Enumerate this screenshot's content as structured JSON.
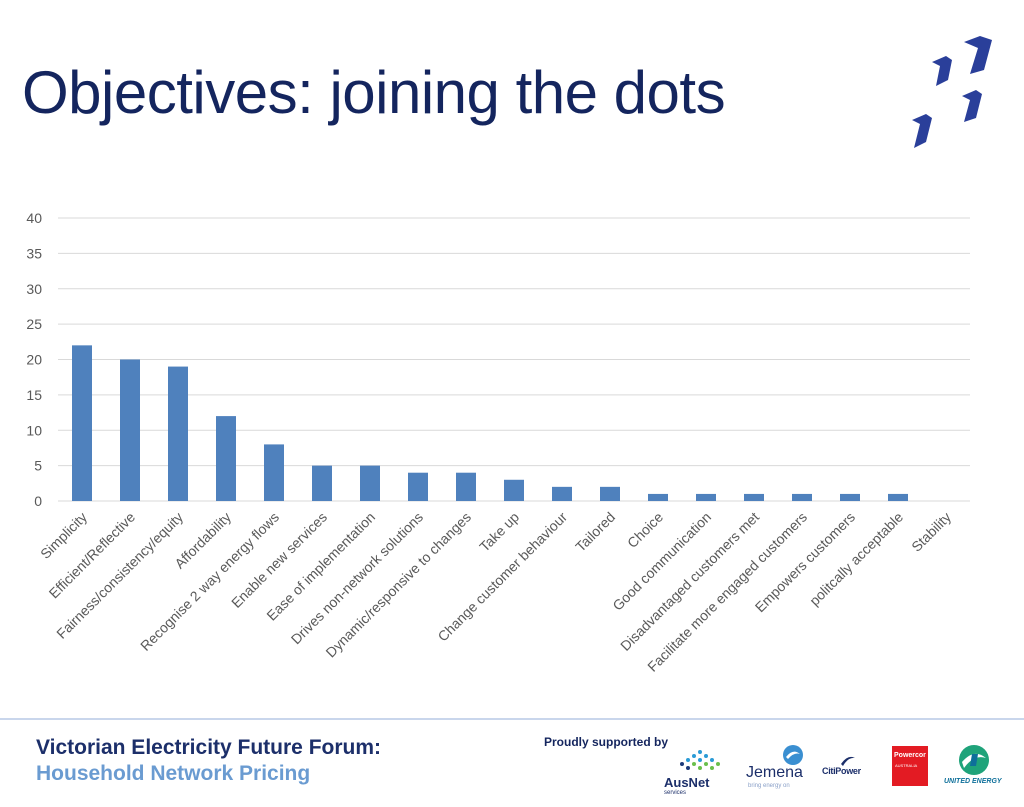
{
  "title": "Objectives: joining the dots",
  "footer": {
    "forum_line1": "Victorian Electricity Future Forum:",
    "forum_line2": "Household Network Pricing",
    "supported_by": "Proudly supported by",
    "sponsors": [
      {
        "name": "AusNet",
        "sub": "services"
      },
      {
        "name": "Jemena",
        "sub": "bring energy on"
      },
      {
        "name": "CitiPower",
        "sub": ""
      },
      {
        "name": "Powercor",
        "sub": "AUSTRALIA"
      },
      {
        "name": "UNITED ENERGY",
        "sub": ""
      }
    ]
  },
  "colors": {
    "title": "#14255e",
    "bar": "#4f81bd",
    "grid": "#d9d9d9",
    "forum_dark": "#1c2f6a",
    "forum_light": "#6a9bd1"
  },
  "chart_data": {
    "type": "bar",
    "categories": [
      "Simplicity",
      "Efficient/Reflective",
      "Fairness/consistency/equity",
      "Affordability",
      "Recognise 2 way energy flows",
      "Enable new services",
      "Ease of implementation",
      "Drives non-network solutions",
      "Dynamic/responsive to changes",
      "Take up",
      "Change customer behaviour",
      "Tailored",
      "Choice",
      "Good communication",
      "Disadvantaged customers met",
      "Facilitate more engaged customers",
      "Empowers customers",
      "politcally acceptable",
      "Stability"
    ],
    "values": [
      22,
      20,
      19,
      12,
      8,
      5,
      5,
      4,
      4,
      3,
      2,
      2,
      1,
      1,
      1,
      1,
      1,
      1,
      0
    ],
    "ylim": [
      0,
      40
    ],
    "yticks": [
      0,
      5,
      10,
      15,
      20,
      25,
      30,
      35,
      40
    ],
    "grid": true,
    "legend": "none",
    "xlabel": "",
    "ylabel": ""
  }
}
